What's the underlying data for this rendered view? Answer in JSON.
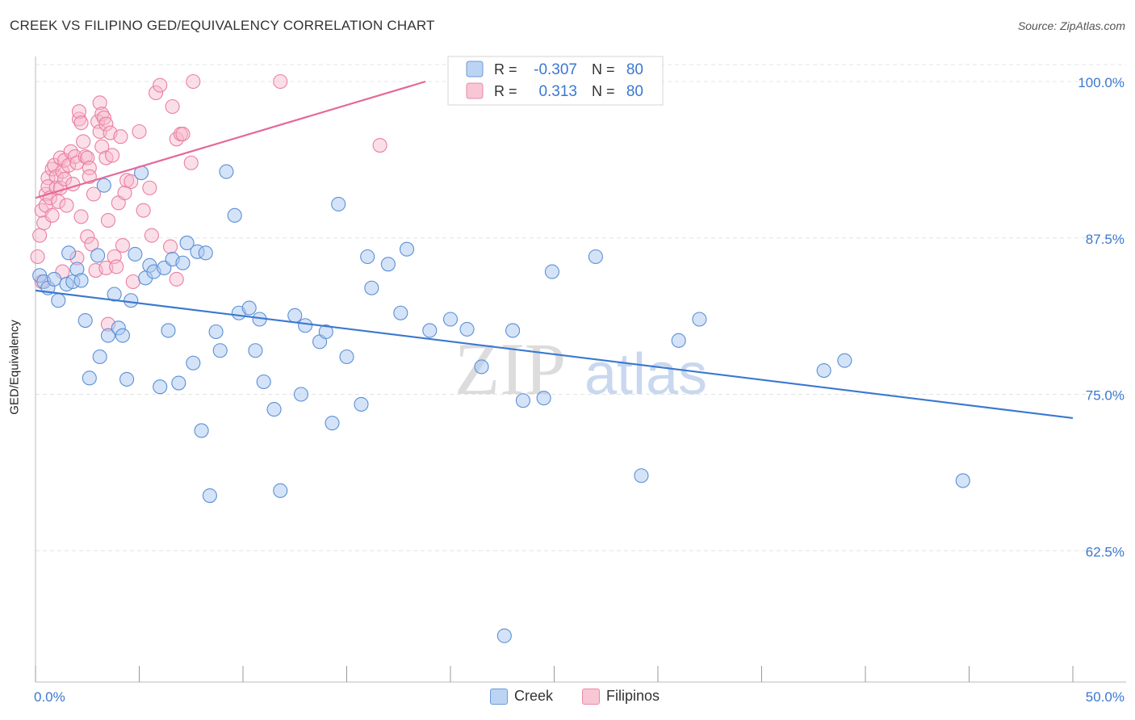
{
  "header": {
    "title": "CREEK VS FILIPINO GED/EQUIVALENCY CORRELATION CHART",
    "source": "Source: ZipAtlas.com"
  },
  "watermark": {
    "zip": "ZIP",
    "atlas": "atlas"
  },
  "legend": {
    "rows": [
      {
        "r_label": "R = ",
        "r_value": "-0.307",
        "n_label": "N = ",
        "n_value": "80"
      },
      {
        "r_label": "R = ",
        "r_value": "0.313",
        "n_label": "N = ",
        "n_value": "80"
      }
    ]
  },
  "bottom_legend": {
    "creek": "Creek",
    "filipinos": "Filipinos"
  },
  "colors": {
    "creek_fill": "#a9c8f0",
    "creek_stroke": "#5b8fd6",
    "creek_line": "#3a78d0",
    "filipinos_fill": "#f6b8cb",
    "filipinos_stroke": "#ea7fa1",
    "filipinos_line": "#e5699a",
    "value_text": "#3a78d0",
    "grid": "#e4e4e4"
  },
  "chart_data": {
    "type": "scatter",
    "title": "CREEK VS FILIPINO GED/EQUIVALENCY CORRELATION CHART",
    "xlabel": "",
    "ylabel": "GED/Equivalency",
    "xlim": [
      0,
      50
    ],
    "ylim": [
      52,
      102
    ],
    "x_tick_labels": [
      "0.0%",
      "50.0%"
    ],
    "y_ticks": [
      62.5,
      75.0,
      87.5,
      100.0
    ],
    "y_tick_labels": [
      "62.5%",
      "75.0%",
      "87.5%",
      "100.0%"
    ],
    "grid": true,
    "legend_position": "top-center",
    "series": [
      {
        "name": "Creek",
        "R": -0.307,
        "N": 80,
        "trend": {
          "x": [
            0,
            50
          ],
          "y": [
            83.3,
            73.1
          ]
        },
        "points": [
          [
            0.2,
            84.5
          ],
          [
            0.4,
            84.0
          ],
          [
            0.6,
            83.5
          ],
          [
            0.9,
            84.2
          ],
          [
            1.1,
            82.5
          ],
          [
            1.5,
            83.8
          ],
          [
            1.6,
            86.3
          ],
          [
            1.8,
            84.0
          ],
          [
            2.0,
            85.0
          ],
          [
            2.2,
            84.1
          ],
          [
            2.4,
            80.9
          ],
          [
            2.6,
            76.3
          ],
          [
            3.0,
            86.1
          ],
          [
            3.1,
            78.0
          ],
          [
            3.3,
            91.7
          ],
          [
            3.5,
            79.7
          ],
          [
            3.8,
            83.0
          ],
          [
            4.0,
            80.3
          ],
          [
            4.2,
            79.7
          ],
          [
            4.4,
            76.2
          ],
          [
            4.6,
            82.5
          ],
          [
            4.8,
            86.2
          ],
          [
            5.1,
            92.7
          ],
          [
            5.3,
            84.3
          ],
          [
            5.5,
            85.3
          ],
          [
            5.7,
            84.8
          ],
          [
            6.0,
            75.6
          ],
          [
            6.2,
            85.1
          ],
          [
            6.4,
            80.1
          ],
          [
            6.6,
            85.8
          ],
          [
            6.9,
            75.9
          ],
          [
            7.1,
            85.5
          ],
          [
            7.3,
            87.1
          ],
          [
            7.6,
            77.5
          ],
          [
            7.8,
            86.4
          ],
          [
            8.0,
            72.1
          ],
          [
            8.2,
            86.3
          ],
          [
            8.4,
            66.9
          ],
          [
            8.7,
            80.0
          ],
          [
            8.9,
            78.5
          ],
          [
            9.2,
            92.8
          ],
          [
            9.6,
            89.3
          ],
          [
            9.8,
            81.5
          ],
          [
            10.3,
            81.9
          ],
          [
            10.6,
            78.5
          ],
          [
            10.8,
            81.0
          ],
          [
            11.0,
            76.0
          ],
          [
            11.5,
            73.8
          ],
          [
            11.8,
            67.3
          ],
          [
            12.5,
            81.3
          ],
          [
            12.8,
            75.0
          ],
          [
            13.0,
            80.5
          ],
          [
            13.7,
            79.2
          ],
          [
            14.0,
            80.0
          ],
          [
            14.3,
            72.7
          ],
          [
            14.6,
            90.2
          ],
          [
            15.0,
            78.0
          ],
          [
            15.7,
            74.2
          ],
          [
            16.0,
            86.0
          ],
          [
            16.2,
            83.5
          ],
          [
            17.0,
            85.4
          ],
          [
            17.6,
            81.5
          ],
          [
            17.9,
            86.6
          ],
          [
            19.0,
            80.1
          ],
          [
            20.0,
            81.0
          ],
          [
            20.8,
            80.2
          ],
          [
            21.5,
            77.2
          ],
          [
            22.6,
            55.7
          ],
          [
            23.0,
            80.1
          ],
          [
            23.5,
            74.5
          ],
          [
            24.5,
            74.7
          ],
          [
            24.9,
            84.8
          ],
          [
            27.0,
            86.0
          ],
          [
            29.2,
            68.5
          ],
          [
            31.0,
            79.3
          ],
          [
            32.0,
            81.0
          ],
          [
            38.0,
            76.9
          ],
          [
            39.0,
            77.7
          ],
          [
            44.7,
            68.1
          ],
          [
            22.0,
            99.9
          ]
        ]
      },
      {
        "name": "Filipinos",
        "R": 0.313,
        "N": 80,
        "trend": {
          "x": [
            0,
            18.8
          ],
          "y": [
            90.7,
            100.0
          ]
        },
        "points": [
          [
            0.1,
            86.0
          ],
          [
            0.2,
            87.7
          ],
          [
            0.3,
            84.0
          ],
          [
            0.3,
            89.7
          ],
          [
            0.4,
            88.7
          ],
          [
            0.5,
            91.0
          ],
          [
            0.5,
            90.1
          ],
          [
            0.6,
            92.3
          ],
          [
            0.6,
            91.6
          ],
          [
            0.7,
            90.7
          ],
          [
            0.8,
            93.0
          ],
          [
            0.8,
            89.3
          ],
          [
            0.9,
            93.3
          ],
          [
            1.0,
            92.4
          ],
          [
            1.0,
            91.5
          ],
          [
            1.1,
            90.4
          ],
          [
            1.2,
            93.9
          ],
          [
            1.2,
            91.5
          ],
          [
            1.3,
            92.8
          ],
          [
            1.4,
            93.7
          ],
          [
            1.4,
            92.2
          ],
          [
            1.5,
            90.1
          ],
          [
            1.6,
            93.3
          ],
          [
            1.7,
            94.4
          ],
          [
            1.8,
            91.8
          ],
          [
            1.9,
            94.0
          ],
          [
            2.0,
            93.5
          ],
          [
            2.0,
            85.9
          ],
          [
            2.1,
            97.0
          ],
          [
            2.1,
            97.6
          ],
          [
            2.2,
            96.7
          ],
          [
            2.3,
            95.2
          ],
          [
            2.4,
            94.0
          ],
          [
            2.5,
            93.9
          ],
          [
            2.5,
            87.6
          ],
          [
            2.6,
            93.1
          ],
          [
            2.6,
            92.4
          ],
          [
            2.7,
            87.0
          ],
          [
            2.8,
            91.0
          ],
          [
            2.9,
            84.9
          ],
          [
            3.0,
            96.8
          ],
          [
            3.1,
            96.0
          ],
          [
            3.1,
            98.3
          ],
          [
            3.2,
            97.4
          ],
          [
            3.2,
            94.8
          ],
          [
            3.3,
            97.1
          ],
          [
            3.4,
            96.6
          ],
          [
            3.4,
            93.9
          ],
          [
            3.4,
            85.1
          ],
          [
            3.5,
            88.9
          ],
          [
            3.5,
            80.6
          ],
          [
            3.6,
            95.9
          ],
          [
            3.8,
            86.0
          ],
          [
            3.9,
            85.2
          ],
          [
            4.0,
            90.3
          ],
          [
            4.1,
            95.6
          ],
          [
            4.2,
            86.9
          ],
          [
            4.3,
            91.1
          ],
          [
            4.4,
            92.1
          ],
          [
            4.6,
            92.0
          ],
          [
            4.7,
            84.0
          ],
          [
            5.0,
            96.0
          ],
          [
            5.2,
            89.7
          ],
          [
            5.5,
            91.5
          ],
          [
            5.6,
            87.7
          ],
          [
            5.8,
            99.1
          ],
          [
            6.0,
            99.7
          ],
          [
            6.5,
            86.8
          ],
          [
            6.6,
            98.0
          ],
          [
            6.8,
            95.4
          ],
          [
            7.0,
            95.8
          ],
          [
            7.1,
            95.8
          ],
          [
            7.5,
            93.5
          ],
          [
            7.6,
            100.0
          ],
          [
            11.8,
            100.0
          ],
          [
            16.6,
            94.9
          ],
          [
            6.8,
            84.2
          ],
          [
            3.7,
            94.1
          ],
          [
            2.2,
            89.2
          ],
          [
            1.3,
            84.8
          ]
        ]
      }
    ]
  }
}
